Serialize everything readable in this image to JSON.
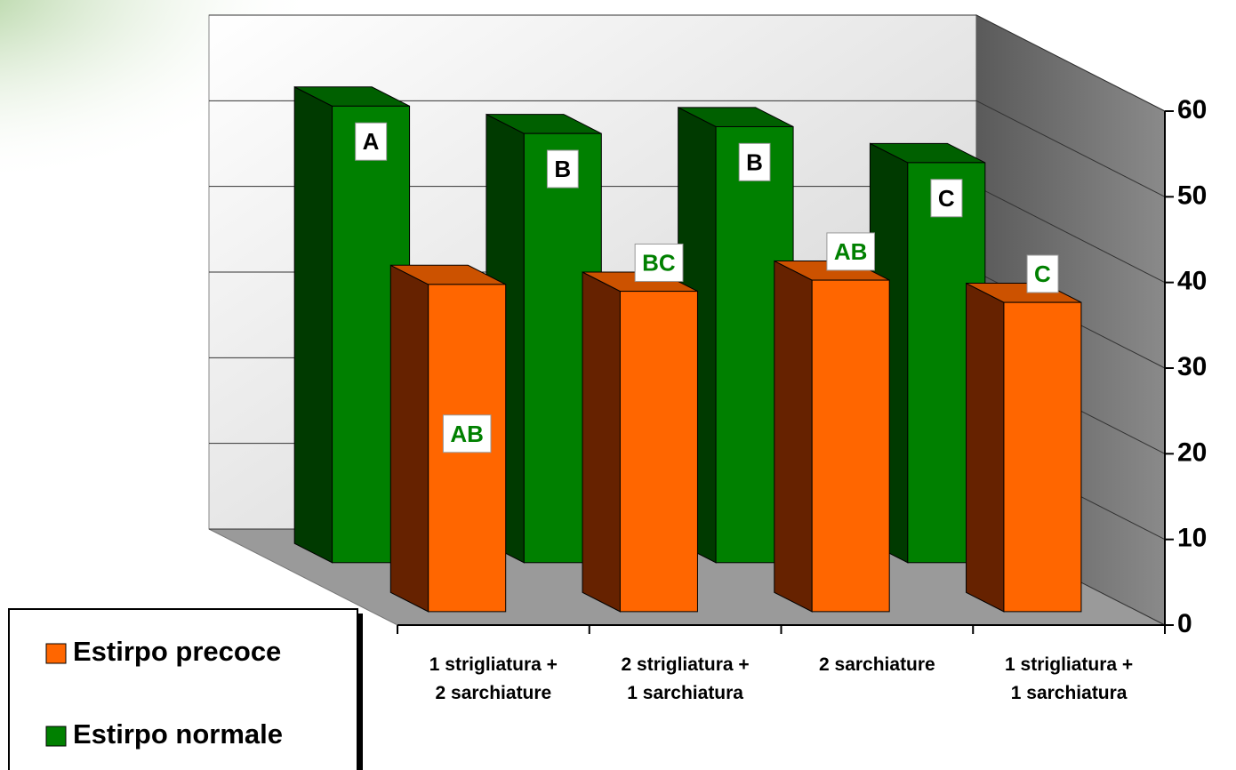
{
  "chart_data": {
    "type": "bar3d",
    "categories": [
      "1 strigliatura +\n2 sarchiature",
      "2 strigliatura +\n1 sarchiatura",
      "2 sarchiature",
      "1 strigliatura +\n1 sarchiatura"
    ],
    "series": [
      {
        "name": "Estirpo precoce",
        "color": "#ff6600",
        "side_color": "#662200",
        "top_color": "#cc5200",
        "label_color": "#008000",
        "values": [
          38.2,
          37.4,
          38.7,
          36.1
        ],
        "labels": [
          "AB",
          "BC",
          "AB",
          "C"
        ]
      },
      {
        "name": "Estirpo normale",
        "color": "#008000",
        "side_color": "#003a00",
        "top_color": "#006000",
        "label_color": "#000000",
        "values": [
          53.3,
          50.1,
          50.9,
          46.7
        ],
        "labels": [
          "A",
          "B",
          "B",
          "C"
        ]
      }
    ],
    "ylim": [
      0,
      60
    ],
    "yticks": [
      0,
      10,
      20,
      30,
      40,
      50,
      60
    ],
    "grid": true,
    "legend": "bottom-left"
  }
}
